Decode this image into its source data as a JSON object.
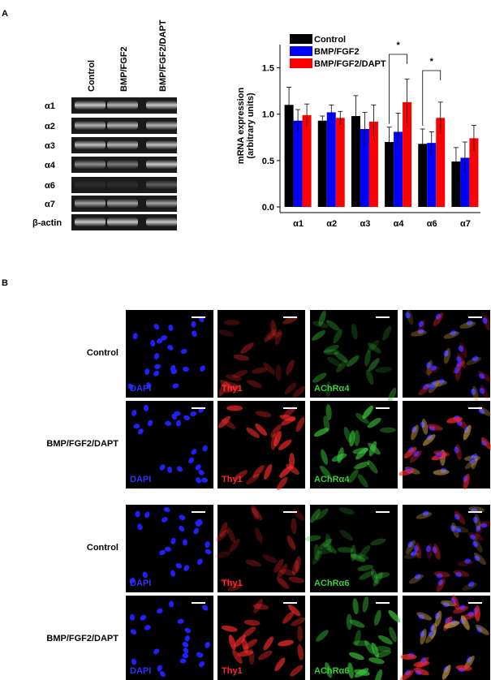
{
  "panel_labels": [
    "A",
    "B"
  ],
  "blot": {
    "columns": [
      "Control",
      "BMP/FGF2",
      "BMP/FGF2/DAPT"
    ],
    "rows": [
      "α1",
      "α2",
      "α3",
      "α4",
      "α6",
      "α7",
      "β-actin"
    ]
  },
  "chart_data": {
    "type": "bar",
    "ylabel": [
      "mRNA expression",
      "(arbitrary units)"
    ],
    "categories": [
      "α1",
      "α2",
      "α3",
      "α4",
      "α6",
      "α7"
    ],
    "series": [
      {
        "name": "Control",
        "color": "#000000",
        "values": [
          1.1,
          0.93,
          0.98,
          0.7,
          0.68,
          0.49
        ],
        "errors": [
          0.19,
          0.05,
          0.22,
          0.16,
          0.16,
          0.15
        ]
      },
      {
        "name": "BMP/FGF2",
        "color": "#0000ff",
        "values": [
          0.93,
          1.02,
          0.84,
          0.81,
          0.69,
          0.53
        ],
        "errors": [
          0.12,
          0.08,
          0.18,
          0.2,
          0.12,
          0.17
        ]
      },
      {
        "name": "BMP/FGF2/DAPT",
        "color": "#ff0000",
        "values": [
          0.99,
          0.96,
          0.92,
          1.13,
          0.96,
          0.74
        ],
        "errors": [
          0.12,
          0.07,
          0.18,
          0.25,
          0.17,
          0.14
        ]
      }
    ],
    "ylim": [
      0,
      1.75
    ],
    "yticks": [
      {
        "value": 0,
        "label": "0.0"
      },
      0.5,
      {
        "value": 1,
        "label": "1.0"
      },
      1.5
    ],
    "annotations": [
      "*",
      "*"
    ],
    "legend": "upper left"
  },
  "micrographs": {
    "rows": [
      "Control",
      "BMP/FGF2/DAPT",
      "Control",
      "BMP/FGF2/DAPT"
    ],
    "channels": [
      [
        "DAPI",
        "Thy1",
        "AChRα4"
      ],
      [
        "DAPI",
        "Thy1",
        "AChRα4"
      ],
      [
        "DAPI",
        "Thy1",
        "AChRα6"
      ],
      [
        "DAPI",
        "Thy1",
        "AChRα6"
      ]
    ]
  }
}
